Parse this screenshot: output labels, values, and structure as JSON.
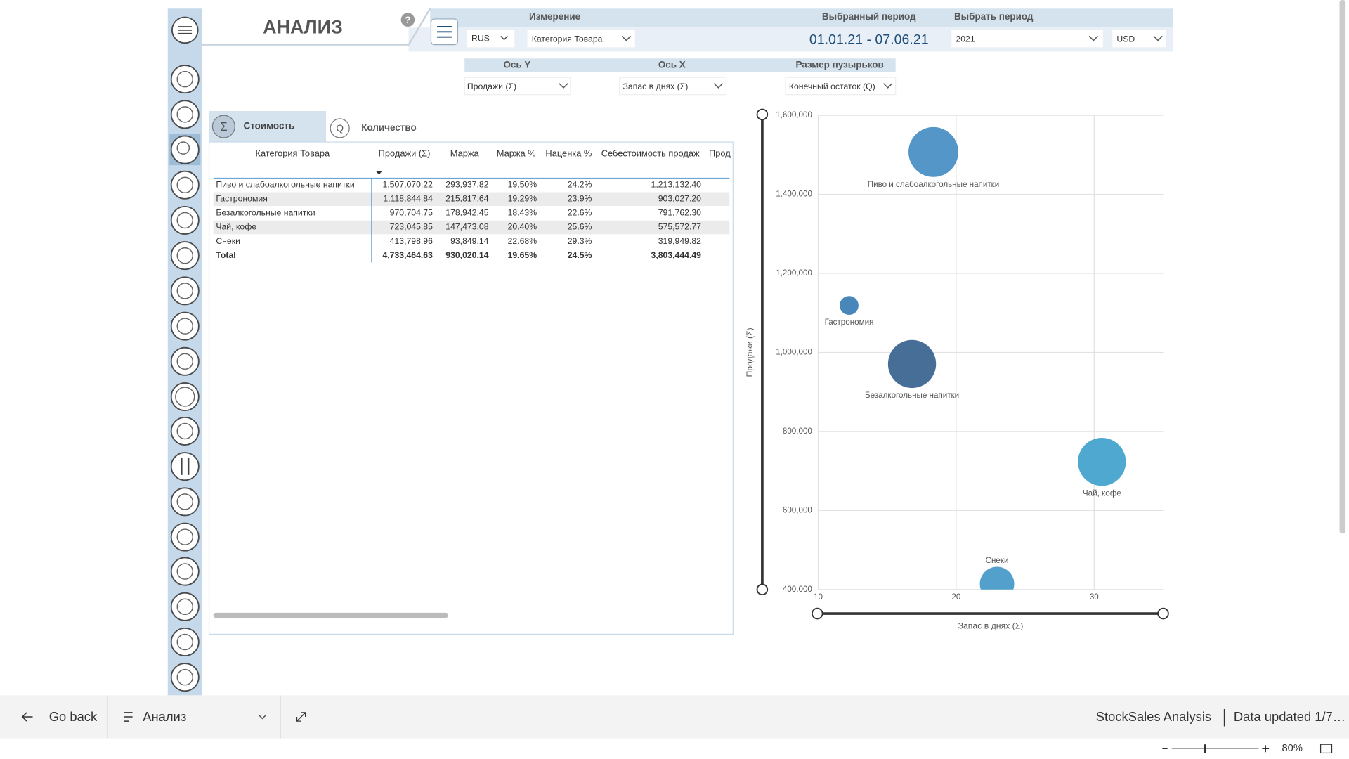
{
  "header": {
    "title": "АНАЛИЗ",
    "help": "?",
    "dimension_label": "Измерение",
    "language": "RUS",
    "dimension": "Категория Товара",
    "period_label": "Выбранный период",
    "period": "01.01.21 - 07.06.21",
    "select_period_label": "Выбрать период",
    "year": "2021",
    "currency": "USD"
  },
  "axes_panel": {
    "y_label": "Ось Y",
    "x_label": "Ось X",
    "size_label": "Размер пузырьков",
    "y_value": "Продажи (Σ)",
    "x_value": "Запас в днях (Σ)",
    "size_value": "Конечный остаток (Q)"
  },
  "tabs": [
    {
      "icon": "Σ",
      "label": "Стоимость"
    },
    {
      "icon": "Q",
      "label": "Количество"
    }
  ],
  "table": {
    "headers": [
      "Категория Товара",
      "Продажи (Σ)",
      "Маржа",
      "Маржа %",
      "Наценка %",
      "Себестоимость продаж",
      "Прод"
    ],
    "rows": [
      [
        "Пиво и слабоалкогольные напитки",
        "1,507,070.22",
        "293,937.82",
        "19.50%",
        "24.2%",
        "1,213,132.40"
      ],
      [
        "Гастрономия",
        "1,118,844.84",
        "215,817.64",
        "19.29%",
        "23.9%",
        "903,027.20"
      ],
      [
        "Безалкогольные напитки",
        "970,704.75",
        "178,942.45",
        "18.43%",
        "22.6%",
        "791,762.30"
      ],
      [
        "Чай, кофе",
        "723,045.85",
        "147,473.08",
        "20.40%",
        "25.6%",
        "575,572.77"
      ],
      [
        "Снеки",
        "413,798.96",
        "93,849.14",
        "22.68%",
        "29.3%",
        "319,949.82"
      ]
    ],
    "total": [
      "Total",
      "4,733,464.63",
      "930,020.14",
      "19.65%",
      "24.5%",
      "3,803,444.49"
    ]
  },
  "chart_data": {
    "type": "bubble",
    "x_label": "Запас в днях (Σ)",
    "y_label": "Продажи (Σ)",
    "categories": [
      "Пиво и слабоалкогольные напитки",
      "Гастрономия",
      "Безалкогольные напитки",
      "Чай, кофе",
      "Снеки"
    ],
    "x": [
      18.35,
      12.24,
      16.8,
      30.56,
      22.96
    ],
    "values": [
      1507070.22,
      1118844.84,
      970704.75,
      723045.85,
      413798.96
    ],
    "sizes": [
      8400,
      1200,
      7800,
      7800,
      4000
    ],
    "colors": [
      "#4a90c4",
      "#3f7fb5",
      "#3d6690",
      "#46a3cc",
      "#4a9bc9"
    ],
    "xlim": [
      10,
      35
    ],
    "xticks": [
      10,
      20,
      30
    ],
    "ylim": [
      400000,
      1600000
    ],
    "yticks": [
      {
        "value": 400000,
        "label": "400,000"
      },
      {
        "value": 600000,
        "label": "600,000"
      },
      {
        "value": 800000,
        "label": "800,000"
      },
      {
        "value": 1000000,
        "label": "1,000,000"
      },
      {
        "value": 1200000,
        "label": "1,200,000"
      },
      {
        "value": 1400000,
        "label": "1,400,000"
      },
      {
        "value": 1600000,
        "label": "1,600,000"
      }
    ],
    "grid": true
  },
  "footer": {
    "back": "Go back",
    "page": "Анализ",
    "report": "StockSales Analysis",
    "updated": "Data updated 1/7…",
    "zoom": "80%"
  }
}
